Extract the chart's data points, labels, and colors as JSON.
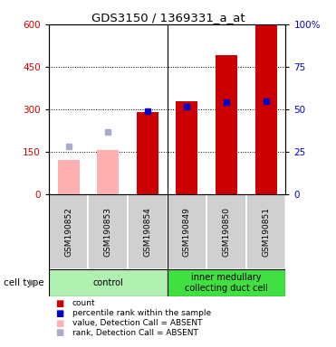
{
  "title": "GDS3150 / 1369331_a_at",
  "samples": [
    "GSM190852",
    "GSM190853",
    "GSM190854",
    "GSM190849",
    "GSM190850",
    "GSM190851"
  ],
  "groups": [
    {
      "label": "control",
      "indices": [
        0,
        1,
        2
      ],
      "color": "#b0f0b0"
    },
    {
      "label": "inner medullary\ncollecting duct cell",
      "indices": [
        3,
        4,
        5
      ],
      "color": "#40e040"
    }
  ],
  "count_values": [
    null,
    null,
    290,
    330,
    490,
    600
  ],
  "count_absent_values": [
    120,
    155,
    null,
    null,
    null,
    null
  ],
  "percentile_values": [
    null,
    null,
    293,
    310,
    325,
    330
  ],
  "percentile_absent_values": [
    168,
    220,
    null,
    null,
    null,
    null
  ],
  "left_ylim": [
    0,
    600
  ],
  "right_ylim": [
    0,
    100
  ],
  "left_yticks": [
    0,
    150,
    300,
    450,
    600
  ],
  "right_yticks": [
    0,
    25,
    50,
    75,
    100
  ],
  "right_yticklabels": [
    "0",
    "25",
    "50",
    "75",
    "100%"
  ],
  "count_color": "#cc0000",
  "count_absent_color": "#ffb0b0",
  "percentile_color": "#0000cc",
  "percentile_absent_color": "#aaaacc",
  "plot_bg_color": "#ffffff",
  "sample_bg_color": "#d0d0d0",
  "legend_items": [
    {
      "color": "#cc0000",
      "label": "count"
    },
    {
      "color": "#0000cc",
      "label": "percentile rank within the sample"
    },
    {
      "color": "#ffb0b0",
      "label": "value, Detection Call = ABSENT"
    },
    {
      "color": "#aaaacc",
      "label": "rank, Detection Call = ABSENT"
    }
  ]
}
